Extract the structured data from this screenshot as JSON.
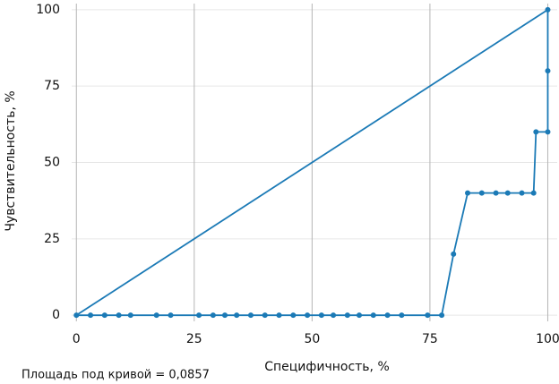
{
  "chart_data": {
    "type": "line",
    "xlabel": "Специфичность, %",
    "ylabel": "Чувствительность, %",
    "annotation": "Площадь под кривой = 0,0857",
    "xlim": [
      -1,
      102
    ],
    "ylim": [
      -2,
      102
    ],
    "xticks": [
      0,
      25,
      50,
      75,
      100
    ],
    "yticks": [
      0,
      25,
      50,
      75,
      100
    ],
    "grid": true,
    "series": [
      {
        "color": "#1b7ab6",
        "markers": false,
        "x": [
          0,
          100
        ],
        "values": [
          0,
          100
        ]
      },
      {
        "color": "#1b7ab6",
        "markers": true,
        "x": [
          0,
          3,
          6,
          9,
          11.5,
          17,
          20,
          26,
          29,
          31.5,
          34,
          37,
          40,
          43,
          46,
          49,
          52,
          54.5,
          57.5,
          60,
          63,
          66,
          69,
          74.5,
          77.5,
          80,
          83,
          86,
          89,
          91.5,
          94.5,
          97,
          97.5,
          100,
          100,
          100
        ],
        "values": [
          0,
          0,
          0,
          0,
          0,
          0,
          0,
          0,
          0,
          0,
          0,
          0,
          0,
          0,
          0,
          0,
          0,
          0,
          0,
          0,
          0,
          0,
          0,
          0,
          0,
          20,
          40,
          40,
          40,
          40,
          40,
          40,
          60,
          60,
          80,
          100
        ]
      }
    ]
  }
}
